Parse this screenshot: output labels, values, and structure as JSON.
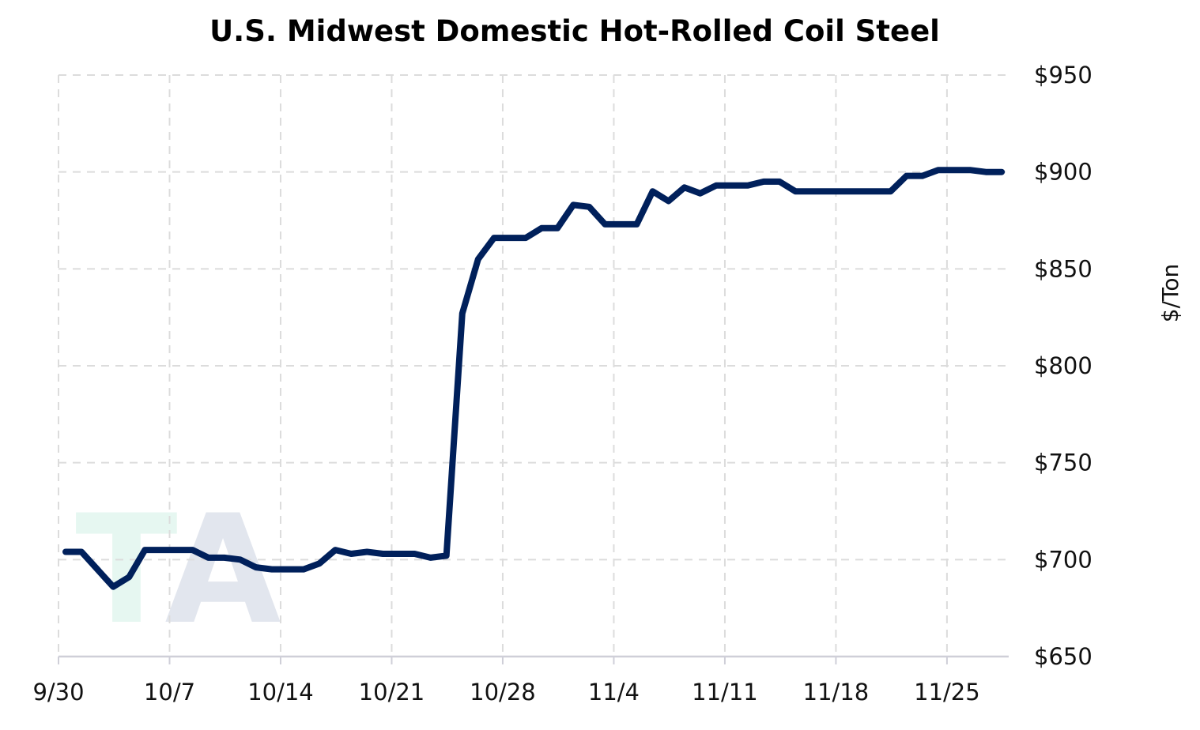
{
  "chart_data": {
    "type": "line",
    "title": "U.S. Midwest Domestic Hot-Rolled Coil Steel",
    "xlabel": "",
    "ylabel": "$/Ton",
    "x_tick_labels": [
      "9/30",
      "10/7",
      "10/14",
      "10/21",
      "10/28",
      "11/4",
      "11/11",
      "11/18",
      "11/25"
    ],
    "y_tick_labels": [
      "$650",
      "$700",
      "$750",
      "$800",
      "$850",
      "$900",
      "$950"
    ],
    "y_ticks": [
      650,
      700,
      750,
      800,
      850,
      900,
      950
    ],
    "ylim": [
      650,
      950
    ],
    "x_range_days": [
      0,
      59.5
    ],
    "grid": true,
    "y_axis_position": "right",
    "series": [
      {
        "color": "#00205b",
        "x": [
          "9/30",
          "10/1",
          "10/2",
          "10/3",
          "10/4",
          "10/5",
          "10/6",
          "10/7",
          "10/8",
          "10/9",
          "10/10",
          "10/11",
          "10/12",
          "10/13",
          "10/14",
          "10/15",
          "10/16",
          "10/17",
          "10/18",
          "10/19",
          "10/20",
          "10/21",
          "10/22",
          "10/23",
          "10/24",
          "10/25",
          "10/26",
          "10/27",
          "10/28",
          "10/29",
          "10/30",
          "10/31",
          "11/1",
          "11/2",
          "11/3",
          "11/4",
          "11/5",
          "11/6",
          "11/7",
          "11/8",
          "11/9",
          "11/10",
          "11/11",
          "11/12",
          "11/13",
          "11/14",
          "11/15",
          "11/16",
          "11/17",
          "11/18",
          "11/19",
          "11/20",
          "11/21",
          "11/22",
          "11/23",
          "11/24",
          "11/25",
          "11/26",
          "11/27",
          "11/28"
        ],
        "values": [
          704,
          704,
          695,
          686,
          691,
          705,
          705,
          705,
          705,
          701,
          701,
          700,
          696,
          695,
          695,
          695,
          698,
          705,
          703,
          704,
          703,
          703,
          703,
          701,
          702,
          827,
          855,
          866,
          866,
          866,
          871,
          871,
          883,
          882,
          873,
          873,
          873,
          890,
          885,
          892,
          889,
          893,
          893,
          893,
          895,
          895,
          890,
          890,
          890,
          890,
          890,
          890,
          890,
          898,
          898,
          901,
          901,
          901,
          900,
          900
        ]
      }
    ]
  },
  "watermark": {
    "letters": "TA",
    "colors": [
      "#e6f7f1",
      "#e2e6ee"
    ]
  }
}
